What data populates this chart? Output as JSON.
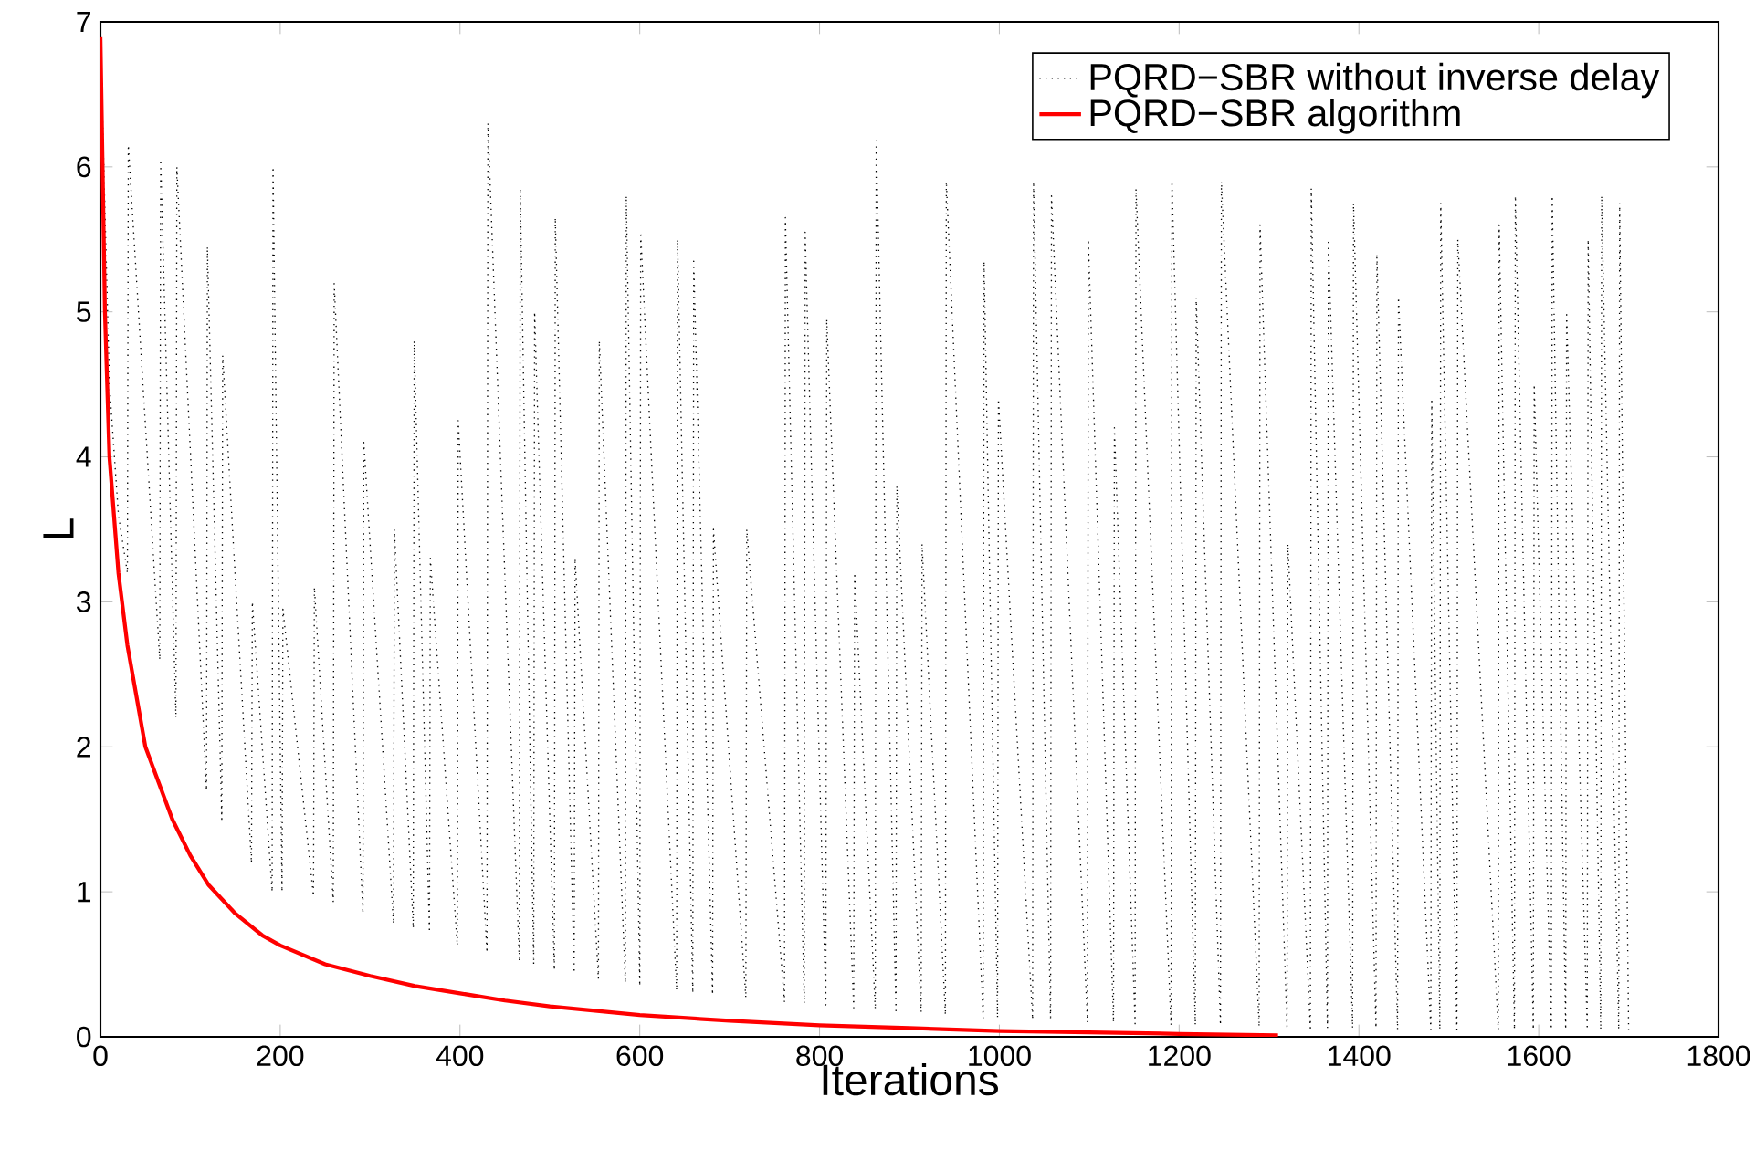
{
  "chart_data": {
    "type": "line",
    "xlabel": "Iterations",
    "ylabel": "L",
    "xlim": [
      0,
      1800
    ],
    "ylim": [
      0,
      7
    ],
    "xticks": [
      0,
      200,
      400,
      600,
      800,
      1000,
      1200,
      1400,
      1600,
      1800
    ],
    "yticks": [
      0,
      1,
      2,
      3,
      4,
      5,
      6,
      7
    ],
    "legend": "top right",
    "series": [
      {
        "name": "PQRD−SBR without inverse delay",
        "color": "#000000",
        "line_style": "dotted",
        "x": [
          0,
          10,
          20,
          30,
          31,
          66,
          67,
          84,
          85,
          118,
          119,
          135,
          136,
          168,
          169,
          191,
          192,
          202,
          203,
          237,
          238,
          259,
          260,
          292,
          293,
          326,
          327,
          348,
          349,
          366,
          367,
          397,
          398,
          430,
          431,
          466,
          467,
          482,
          483,
          505,
          506,
          527,
          528,
          554,
          555,
          584,
          585,
          600,
          601,
          641,
          642,
          659,
          660,
          681,
          682,
          718,
          719,
          761,
          762,
          783,
          784,
          807,
          808,
          838,
          839,
          862,
          863,
          885,
          886,
          913,
          914,
          940,
          941,
          982,
          983,
          998,
          999,
          1037,
          1038,
          1057,
          1058,
          1098,
          1099,
          1127,
          1128,
          1151,
          1152,
          1191,
          1192,
          1218,
          1219,
          1246,
          1247,
          1289,
          1290,
          1320,
          1321,
          1346,
          1347,
          1365,
          1366,
          1393,
          1394,
          1419,
          1420,
          1443,
          1444,
          1480,
          1481,
          1490,
          1491,
          1509,
          1510,
          1555,
          1556,
          1573,
          1574,
          1594,
          1595,
          1614,
          1615,
          1630,
          1631,
          1654,
          1655,
          1669,
          1670,
          1689,
          1690,
          1700
        ],
        "values": [
          6.9,
          4.5,
          3.6,
          3.2,
          6.15,
          2.6,
          6.05,
          2.2,
          6.0,
          1.7,
          5.45,
          1.5,
          4.7,
          1.2,
          3.0,
          1.0,
          6.0,
          1.0,
          2.95,
          0.97,
          3.1,
          0.93,
          5.2,
          0.85,
          4.1,
          0.78,
          3.5,
          0.75,
          4.8,
          0.72,
          3.3,
          0.63,
          4.25,
          0.58,
          6.3,
          0.52,
          5.85,
          0.5,
          5.0,
          0.46,
          5.65,
          0.44,
          3.3,
          0.4,
          4.8,
          0.37,
          5.8,
          0.35,
          5.55,
          0.32,
          5.5,
          0.3,
          5.35,
          0.29,
          3.5,
          0.27,
          3.5,
          0.24,
          5.65,
          0.23,
          5.55,
          0.22,
          4.95,
          0.2,
          3.2,
          0.19,
          6.2,
          0.18,
          3.8,
          0.17,
          3.4,
          0.15,
          5.9,
          0.13,
          5.35,
          0.13,
          4.4,
          0.12,
          5.9,
          0.11,
          5.8,
          0.1,
          5.5,
          0.1,
          4.2,
          0.09,
          5.85,
          0.08,
          5.9,
          0.08,
          5.1,
          0.08,
          5.9,
          0.07,
          5.6,
          0.07,
          3.4,
          0.06,
          5.85,
          0.06,
          5.5,
          0.06,
          5.75,
          0.06,
          5.4,
          0.05,
          5.1,
          0.05,
          4.4,
          0.05,
          5.75,
          0.05,
          5.5,
          0.05,
          5.6,
          0.05,
          5.8,
          0.05,
          4.5,
          0.05,
          5.8,
          0.05,
          5.0,
          0.05,
          5.5,
          0.05,
          5.8,
          0.05,
          5.75,
          0.05
        ]
      },
      {
        "name": "PQRD−SBR algorithm",
        "color": "#ff0000",
        "line_style": "solid",
        "x": [
          0,
          5,
          10,
          20,
          30,
          50,
          80,
          100,
          120,
          150,
          180,
          200,
          250,
          300,
          350,
          400,
          450,
          500,
          600,
          700,
          800,
          900,
          1000,
          1100,
          1200,
          1310
        ],
        "values": [
          6.9,
          5.0,
          4.0,
          3.2,
          2.7,
          2.0,
          1.5,
          1.25,
          1.05,
          0.85,
          0.7,
          0.63,
          0.5,
          0.42,
          0.35,
          0.3,
          0.25,
          0.21,
          0.15,
          0.11,
          0.08,
          0.06,
          0.04,
          0.03,
          0.02,
          0.01
        ]
      }
    ]
  }
}
